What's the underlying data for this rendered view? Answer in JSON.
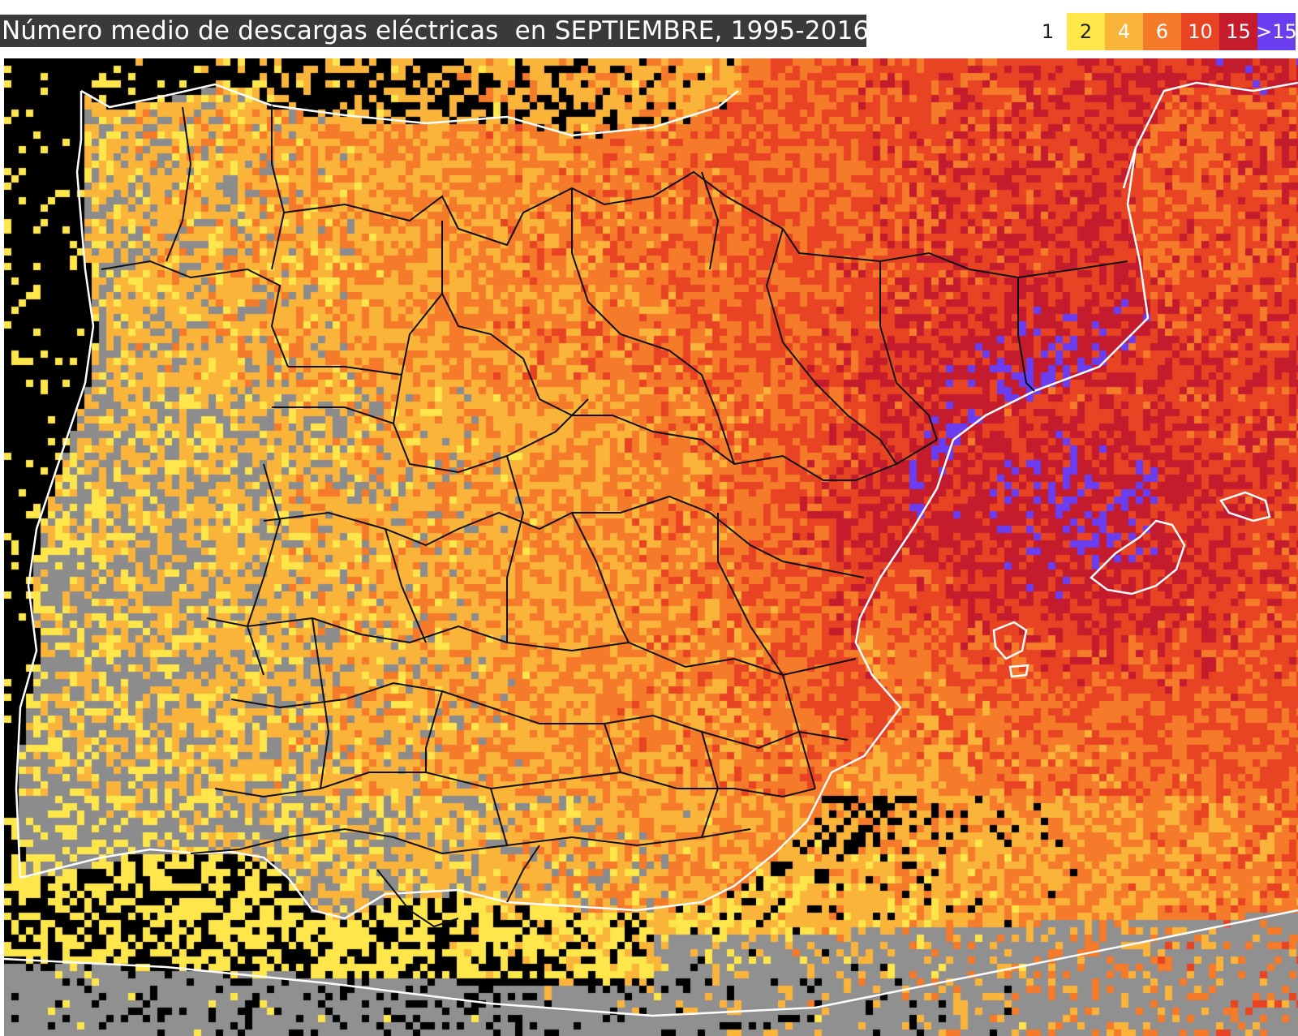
{
  "title": "Número medio de descargas eléctricas  en SEPTIEMBRE, 1995-2016",
  "legend": {
    "items": [
      {
        "label": "1",
        "bg": "#ffffff",
        "fg": "#222222"
      },
      {
        "label": "2",
        "bg": "#ffe64a",
        "fg": "#222222"
      },
      {
        "label": "4",
        "bg": "#fbb43a",
        "fg": "#ffffff"
      },
      {
        "label": "6",
        "bg": "#f57a2a",
        "fg": "#ffffff"
      },
      {
        "label": "10",
        "bg": "#e84423",
        "fg": "#ffffff"
      },
      {
        "label": "15",
        "bg": "#c41c2c",
        "fg": "#ffffff"
      },
      {
        "label": ">15",
        "bg": "#6a3df0",
        "fg": "#ffffff"
      }
    ]
  },
  "colors": {
    "sea_no_data": "#000000",
    "land_no_data": "#8c8c8c",
    "coastline": "#ffffff",
    "province_borders": "#111111"
  }
}
